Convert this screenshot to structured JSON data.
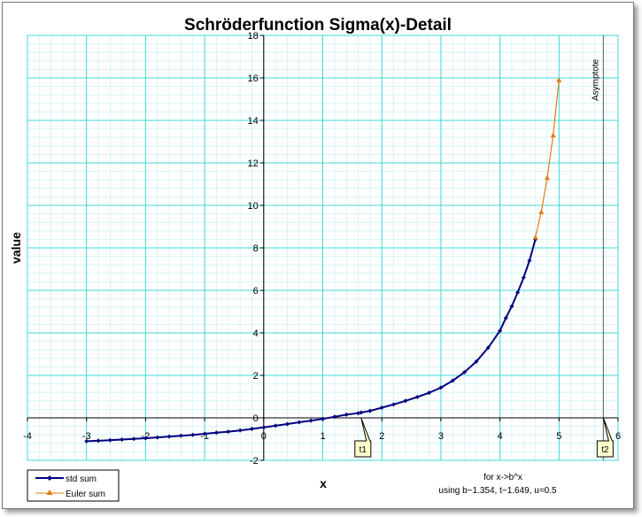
{
  "chart_data": {
    "type": "line",
    "title": "Schröderfunction Sigma(x)-Detail",
    "xlabel": "x",
    "ylabel": "value",
    "xlim": [
      -4,
      6
    ],
    "ylim": [
      -2,
      18
    ],
    "x_ticks": [
      "-4",
      "-3",
      "-2",
      "-1",
      "0",
      "1",
      "2",
      "3",
      "4",
      "5",
      "6"
    ],
    "y_ticks": [
      "-2",
      "0",
      "2",
      "4",
      "6",
      "8",
      "10",
      "12",
      "14",
      "16",
      "18"
    ],
    "grid": true,
    "legend_position": "bottom-left",
    "series": [
      {
        "name": "std sum",
        "color": "#000080",
        "marker": "diamond",
        "x": [
          -3.0,
          -2.8,
          -2.6,
          -2.4,
          -2.2,
          -2.0,
          -1.8,
          -1.6,
          -1.4,
          -1.2,
          -1.0,
          -0.8,
          -0.6,
          -0.4,
          -0.2,
          0.0,
          0.2,
          0.4,
          0.6,
          0.8,
          1.0,
          1.2,
          1.4,
          1.6,
          1.649,
          1.8,
          2.0,
          2.2,
          2.4,
          2.6,
          2.8,
          3.0,
          3.2,
          3.4,
          3.6,
          3.8,
          4.0,
          4.1,
          4.2,
          4.3,
          4.4,
          4.5,
          4.6
        ],
        "values": [
          -1.1,
          -1.08,
          -1.05,
          -1.02,
          -0.99,
          -0.96,
          -0.92,
          -0.88,
          -0.84,
          -0.8,
          -0.75,
          -0.7,
          -0.65,
          -0.59,
          -0.52,
          -0.45,
          -0.37,
          -0.29,
          -0.21,
          -0.13,
          -0.05,
          0.05,
          0.15,
          0.22,
          0.25,
          0.33,
          0.48,
          0.63,
          0.8,
          0.98,
          1.18,
          1.42,
          1.75,
          2.15,
          2.65,
          3.3,
          4.1,
          4.7,
          5.25,
          5.9,
          6.6,
          7.4,
          8.4
        ]
      },
      {
        "name": "Euler sum",
        "color": "#E07B12",
        "marker": "triangle",
        "x": [
          4.6,
          4.7,
          4.8,
          4.9,
          5.0
        ],
        "values": [
          8.5,
          9.7,
          11.3,
          13.3,
          15.9
        ]
      }
    ],
    "annotations": {
      "asymptote_label": "Asymptote",
      "asymptote_x": 5.75,
      "t1_label": "t1",
      "t1_x": 1.649,
      "t2_label": "t2",
      "t2_x": 5.75,
      "note_line1": "for x->b^x",
      "note_line2": "using b~1.354, t~1.649, u=0.5"
    }
  }
}
